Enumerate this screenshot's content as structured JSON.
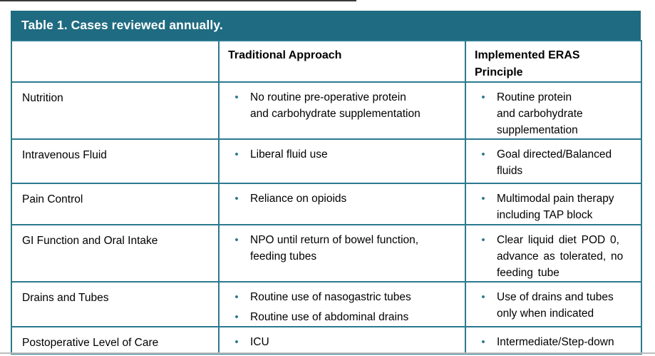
{
  "table": {
    "title": "Table 1. Cases reviewed annually.",
    "columns": [
      "",
      "Traditional Approach",
      "Implemented ERAS Principle"
    ],
    "rows": [
      {
        "label": "Nutrition",
        "traditional": [
          "No routine pre-operative protein\nand carbohydrate supplementation"
        ],
        "eras": [
          "Routine protein\nand carbohydrate\nsupplementation"
        ]
      },
      {
        "label": "Intravenous Fluid",
        "traditional": [
          "Liberal fluid use"
        ],
        "eras": [
          "Goal directed/Balanced\nfluids"
        ]
      },
      {
        "label": "Pain Control",
        "traditional": [
          "Reliance on opioids"
        ],
        "eras": [
          "Multimodal pain therapy\nincluding TAP block"
        ]
      },
      {
        "label": "GI Function and Oral Intake",
        "traditional": [
          "NPO until return of bowel function,\nfeeding tubes"
        ],
        "eras": [
          "Clear liquid diet POD 0,\nadvance as tolerated, no\nfeeding tube"
        ]
      },
      {
        "label": "Drains and Tubes",
        "traditional": [
          "Routine use of nasogastric tubes",
          "Routine use of abdominal drains"
        ],
        "eras": [
          "Use of drains and tubes\nonly when indicated"
        ]
      },
      {
        "label": "Postoperative Level of Care",
        "traditional": [
          "ICU"
        ],
        "eras": [
          "Intermediate/Step-down"
        ]
      }
    ],
    "colors": {
      "header_bg": "#1F6B81",
      "border_teal": "#2B7A8F",
      "bullet_teal": "#2B7A8F",
      "title_text": "#FFFFFF",
      "body_text": "#000000"
    }
  }
}
